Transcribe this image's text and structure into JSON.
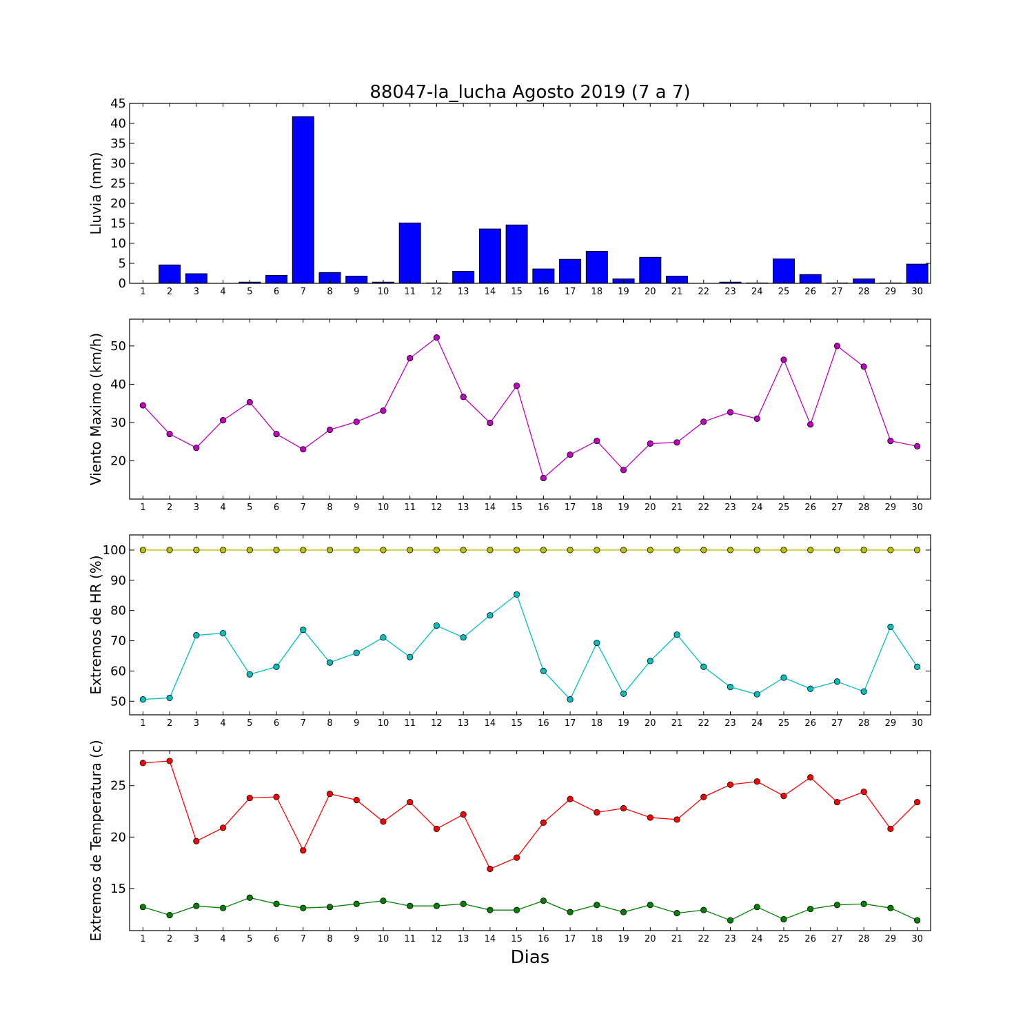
{
  "figure": {
    "title": "88047-la_lucha Agosto 2019  (7 a 7)",
    "xlabel": "Dias"
  },
  "chart_data": [
    {
      "type": "bar",
      "ylabel": "Lluvia (mm)",
      "x": [
        1,
        2,
        3,
        4,
        5,
        6,
        7,
        8,
        9,
        10,
        11,
        12,
        13,
        14,
        15,
        16,
        17,
        18,
        19,
        20,
        21,
        22,
        23,
        24,
        25,
        26,
        27,
        28,
        29,
        30
      ],
      "ylim": [
        0,
        45
      ],
      "yticks": [
        0,
        5,
        10,
        15,
        20,
        25,
        30,
        35,
        40,
        45
      ],
      "series": [
        {
          "color": "#0000ff",
          "values": [
            0,
            4.6,
            2.4,
            0,
            0.3,
            2.0,
            41.7,
            2.7,
            1.8,
            0.3,
            15.1,
            0.1,
            3.0,
            13.6,
            14.6,
            3.6,
            6.0,
            8.0,
            1.1,
            6.5,
            1.8,
            0,
            0.3,
            0.1,
            6.1,
            2.2,
            0.1,
            1.1,
            0.1,
            4.8
          ]
        }
      ]
    },
    {
      "type": "line",
      "ylabel": "Viento Maximo (km/h)",
      "x": [
        1,
        2,
        3,
        4,
        5,
        6,
        7,
        8,
        9,
        10,
        11,
        12,
        13,
        14,
        15,
        16,
        17,
        18,
        19,
        20,
        21,
        22,
        23,
        24,
        25,
        26,
        27,
        28,
        29,
        30
      ],
      "ylim": [
        10,
        57
      ],
      "yticks": [
        20,
        30,
        40,
        50
      ],
      "series": [
        {
          "color": "#bf00bf",
          "values": [
            34.5,
            27.0,
            23.4,
            30.6,
            35.3,
            27.0,
            23.0,
            28.1,
            30.2,
            33.1,
            46.8,
            52.2,
            36.7,
            29.9,
            39.6,
            15.5,
            21.6,
            25.2,
            17.6,
            24.5,
            24.8,
            30.2,
            32.7,
            31.0,
            46.4,
            29.5,
            50.0,
            44.6,
            25.2,
            23.8
          ]
        }
      ]
    },
    {
      "type": "line",
      "ylabel": "Extremos de HR (%)",
      "x": [
        1,
        2,
        3,
        4,
        5,
        6,
        7,
        8,
        9,
        10,
        11,
        12,
        13,
        14,
        15,
        16,
        17,
        18,
        19,
        20,
        21,
        22,
        23,
        24,
        25,
        26,
        27,
        28,
        29,
        30
      ],
      "ylim": [
        45.5,
        105
      ],
      "yticks": [
        50,
        60,
        70,
        80,
        90,
        100
      ],
      "series": [
        {
          "color": "#bfbf00",
          "values": [
            100,
            100,
            100,
            100,
            100,
            100,
            100,
            100,
            100,
            100,
            100,
            100,
            100,
            100,
            100,
            100,
            100,
            100,
            100,
            100,
            100,
            100,
            100,
            100,
            100,
            100,
            100,
            100,
            100,
            100
          ]
        },
        {
          "color": "#00bfbf",
          "values": [
            50.6,
            51.1,
            71.8,
            72.5,
            58.9,
            61.4,
            73.6,
            62.8,
            66.0,
            71.1,
            64.6,
            75.0,
            71.1,
            78.4,
            85.3,
            60.0,
            50.6,
            69.3,
            52.5,
            63.3,
            72.0,
            61.4,
            54.7,
            52.3,
            57.8,
            54.1,
            56.5,
            53.2,
            74.6,
            61.4
          ]
        }
      ]
    },
    {
      "type": "line",
      "ylabel": "Extremos de Temperatura (c)",
      "x": [
        1,
        2,
        3,
        4,
        5,
        6,
        7,
        8,
        9,
        10,
        11,
        12,
        13,
        14,
        15,
        16,
        17,
        18,
        19,
        20,
        21,
        22,
        23,
        24,
        25,
        26,
        27,
        28,
        29,
        30
      ],
      "ylim": [
        10.9,
        28.4
      ],
      "yticks": [
        15,
        20,
        25
      ],
      "series": [
        {
          "color": "#ff0000",
          "values": [
            27.2,
            27.4,
            19.6,
            20.9,
            23.8,
            23.9,
            18.7,
            24.2,
            23.6,
            21.5,
            23.4,
            20.8,
            22.2,
            16.9,
            18.0,
            21.4,
            23.7,
            22.4,
            22.8,
            21.9,
            21.7,
            23.9,
            25.1,
            25.4,
            24.0,
            25.8,
            23.4,
            24.4,
            20.8,
            23.4
          ]
        },
        {
          "color": "#008000",
          "values": [
            13.2,
            12.4,
            13.3,
            13.1,
            14.1,
            13.5,
            13.1,
            13.2,
            13.5,
            13.8,
            13.3,
            13.3,
            13.5,
            12.9,
            12.9,
            13.8,
            12.7,
            13.4,
            12.7,
            13.4,
            12.6,
            12.9,
            11.9,
            13.2,
            12.0,
            13.0,
            13.4,
            13.5,
            13.1,
            11.9
          ]
        }
      ]
    }
  ]
}
